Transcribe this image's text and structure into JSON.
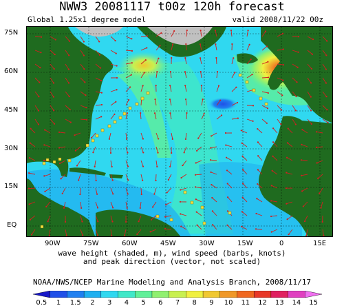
{
  "header": {
    "title": "NWW3 20081117 t00z 120h forecast",
    "model": "Global 1.25x1 degree model",
    "valid": "valid 2008/11/22 00z"
  },
  "map": {
    "lat_labels": [
      "75N",
      "60N",
      "45N",
      "30N",
      "15N",
      "EQ"
    ],
    "lon_labels": [
      "90W",
      "75W",
      "60W",
      "45W",
      "30W",
      "15W",
      "0",
      "15E"
    ],
    "land_color": "#1f6b1f",
    "ice_color": "#c0c0c0",
    "vector_color": "#d02020"
  },
  "caption": {
    "line1": "wave height (shaded, m), wind speed (barbs, knots)",
    "line2": "and peak direction (vector, not scaled)"
  },
  "credit": "NOAA/NWS/NCEP Marine Modeling and Analysis Branch, 2008/11/17",
  "colorbar": {
    "labels": [
      "0.5",
      "1",
      "1.5",
      "2",
      "3",
      "4",
      "5",
      "6",
      "7",
      "8",
      "9",
      "10",
      "11",
      "12",
      "13",
      "14",
      "15"
    ],
    "colors": [
      "#1818c8",
      "#2050e8",
      "#2080f0",
      "#20b0f0",
      "#30d8f0",
      "#40e8c8",
      "#60f098",
      "#90f070",
      "#c8f050",
      "#f0f040",
      "#f0c830",
      "#f09828",
      "#f06820",
      "#e83828",
      "#e02060",
      "#e040c0",
      "#f070f0"
    ]
  }
}
